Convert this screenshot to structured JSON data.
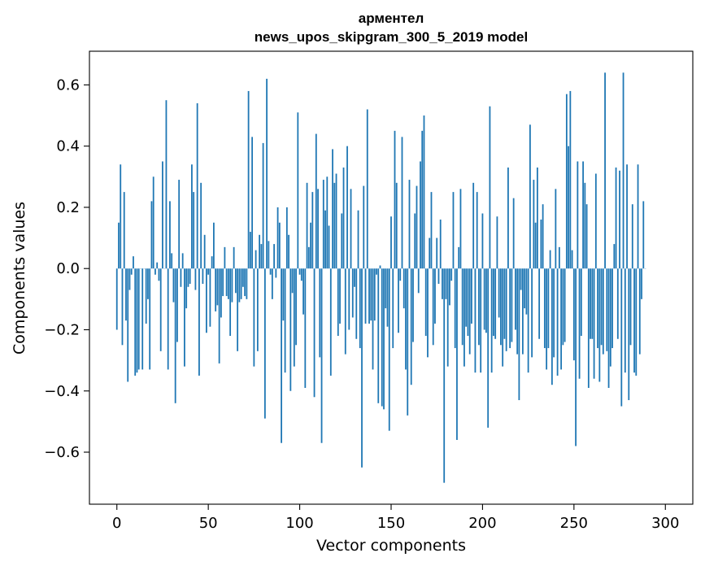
{
  "chart_data": {
    "type": "bar",
    "title": "арментел",
    "subtitle": "news_upos_skipgram_300_5_2019 model",
    "xlabel": "Vector components",
    "ylabel": "Components values",
    "xlim": [
      -15,
      315
    ],
    "ylim": [
      -0.77,
      0.71
    ],
    "xticks": [
      0,
      50,
      100,
      150,
      200,
      250,
      300
    ],
    "xtick_labels": [
      "0",
      "50",
      "100",
      "150",
      "200",
      "250",
      "300"
    ],
    "yticks": [
      -0.6,
      -0.4,
      -0.2,
      0.0,
      0.2,
      0.4,
      0.6
    ],
    "ytick_labels": [
      "−0.6",
      "−0.4",
      "−0.2",
      "0.0",
      "0.2",
      "0.4",
      "0.6"
    ],
    "grid": false,
    "bar_color": "#1f77b4",
    "values": [
      -0.2,
      0.15,
      0.34,
      -0.25,
      0.25,
      -0.17,
      -0.37,
      -0.07,
      -0.02,
      0.04,
      -0.35,
      -0.34,
      -0.33,
      0.0,
      -0.33,
      0.0,
      -0.18,
      -0.1,
      -0.33,
      0.22,
      0.3,
      -0.02,
      0.02,
      -0.04,
      -0.27,
      0.35,
      0.0,
      0.55,
      -0.33,
      0.22,
      0.05,
      -0.11,
      -0.44,
      -0.24,
      0.29,
      -0.06,
      0.05,
      -0.32,
      -0.13,
      -0.06,
      -0.05,
      0.34,
      0.25,
      -0.07,
      0.54,
      -0.35,
      0.28,
      -0.05,
      0.11,
      -0.21,
      -0.02,
      -0.19,
      0.04,
      0.15,
      -0.14,
      -0.12,
      -0.31,
      -0.16,
      -0.09,
      0.07,
      -0.09,
      -0.1,
      -0.22,
      -0.11,
      0.07,
      -0.08,
      -0.27,
      -0.11,
      -0.1,
      -0.06,
      -0.09,
      -0.1,
      0.58,
      0.12,
      0.43,
      -0.32,
      0.06,
      -0.27,
      0.11,
      0.08,
      0.41,
      -0.49,
      0.62,
      0.09,
      -0.02,
      -0.1,
      0.08,
      -0.03,
      0.2,
      0.15,
      -0.57,
      -0.17,
      -0.34,
      0.2,
      0.11,
      -0.4,
      -0.08,
      -0.32,
      -0.25,
      0.51,
      -0.02,
      -0.04,
      -0.15,
      -0.39,
      0.28,
      0.07,
      0.15,
      0.25,
      -0.42,
      0.44,
      0.26,
      -0.29,
      -0.57,
      0.29,
      0.19,
      0.3,
      0.14,
      -0.35,
      0.39,
      0.28,
      0.31,
      -0.22,
      -0.18,
      0.18,
      0.33,
      -0.28,
      0.4,
      -0.2,
      0.26,
      -0.16,
      -0.06,
      -0.23,
      0.19,
      -0.26,
      -0.65,
      0.27,
      -0.18,
      0.52,
      -0.18,
      -0.17,
      -0.33,
      -0.17,
      -0.02,
      -0.44,
      0.01,
      -0.45,
      -0.46,
      -0.13,
      -0.19,
      -0.53,
      0.17,
      -0.26,
      0.45,
      0.28,
      -0.21,
      -0.04,
      0.43,
      -0.13,
      -0.33,
      -0.48,
      0.29,
      -0.38,
      -0.24,
      0.18,
      0.27,
      -0.08,
      0.35,
      0.45,
      0.5,
      -0.22,
      -0.29,
      0.1,
      0.25,
      -0.25,
      -0.18,
      0.1,
      -0.05,
      0.16,
      -0.1,
      -0.7,
      -0.1,
      -0.32,
      -0.12,
      -0.04,
      0.25,
      -0.26,
      -0.56,
      0.07,
      0.26,
      -0.25,
      -0.32,
      -0.19,
      -0.22,
      -0.28,
      -0.18,
      0.28,
      -0.34,
      0.25,
      -0.25,
      -0.34,
      0.18,
      -0.2,
      -0.21,
      -0.52,
      0.53,
      -0.34,
      -0.22,
      -0.23,
      0.17,
      -0.16,
      -0.25,
      -0.32,
      -0.23,
      -0.27,
      0.33,
      -0.26,
      -0.24,
      0.23,
      -0.2,
      -0.28,
      -0.43,
      -0.07,
      -0.28,
      -0.13,
      -0.15,
      -0.34,
      0.47,
      -0.29,
      0.29,
      0.15,
      0.33,
      -0.23,
      0.16,
      0.21,
      -0.26,
      -0.33,
      -0.26,
      0.06,
      -0.38,
      -0.29,
      0.26,
      -0.35,
      0.07,
      -0.33,
      -0.25,
      -0.24,
      0.57,
      0.4,
      0.58,
      0.06,
      -0.3,
      -0.58,
      0.35,
      -0.36,
      -0.22,
      0.35,
      0.28,
      0.21,
      -0.39,
      -0.23,
      -0.23,
      -0.36,
      0.31,
      -0.26,
      -0.37,
      -0.25,
      -0.28,
      0.64,
      -0.27,
      -0.39,
      -0.32,
      -0.26,
      0.08,
      0.33,
      -0.23,
      0.32,
      -0.45,
      0.64,
      -0.34,
      0.34,
      -0.43,
      -0.25,
      0.21,
      -0.34,
      -0.35,
      0.34,
      -0.28,
      -0.1,
      0.22,
      0.0
    ]
  }
}
